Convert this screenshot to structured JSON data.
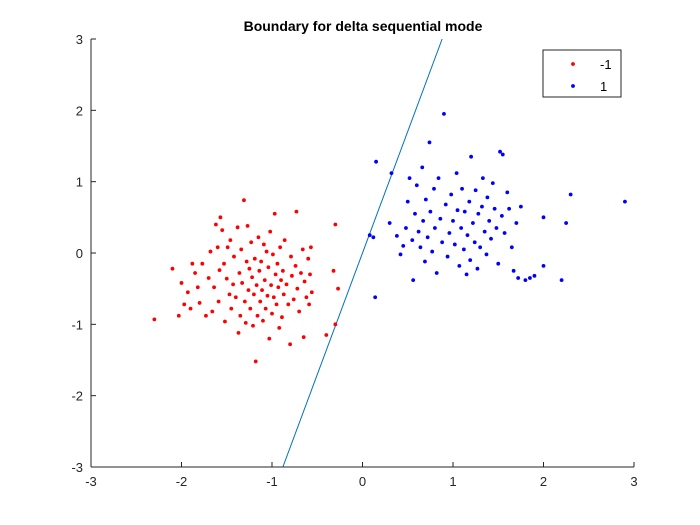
{
  "chart_data": {
    "type": "scatter",
    "title": "Boundary for delta sequential mode",
    "xlabel": "",
    "ylabel": "",
    "xlim": [
      -3,
      3
    ],
    "ylim": [
      -3,
      3
    ],
    "xticks": [
      -3,
      -2,
      -1,
      0,
      1,
      2,
      3
    ],
    "yticks": [
      -3,
      -2,
      -1,
      0,
      1,
      2,
      3
    ],
    "xtick_labels": [
      "-3",
      "-2",
      "-1",
      "0",
      "1",
      "2",
      "3"
    ],
    "ytick_labels": [
      "-3",
      "-2",
      "-1",
      "0",
      "1",
      "2",
      "3"
    ],
    "grid": false,
    "legend_position": "top-right",
    "series": [
      {
        "name": "-1",
        "color": "#ff0000",
        "marker": "dot",
        "points": [
          [
            -2.3,
            -0.93
          ],
          [
            -2.1,
            -0.22
          ],
          [
            -2.03,
            -0.88
          ],
          [
            -2.0,
            -0.42
          ],
          [
            -1.97,
            -0.72
          ],
          [
            -1.93,
            -0.55
          ],
          [
            -1.9,
            -0.78
          ],
          [
            -1.88,
            -0.15
          ],
          [
            -1.85,
            -0.28
          ],
          [
            -1.82,
            -0.48
          ],
          [
            -1.8,
            -0.7
          ],
          [
            -1.77,
            -0.15
          ],
          [
            -1.73,
            -0.88
          ],
          [
            -1.7,
            -0.35
          ],
          [
            -1.68,
            0.02
          ],
          [
            -1.66,
            -0.82
          ],
          [
            -1.64,
            -0.48
          ],
          [
            -1.62,
            0.4
          ],
          [
            -1.6,
            0.08
          ],
          [
            -1.59,
            -0.68
          ],
          [
            -1.58,
            -0.24
          ],
          [
            -1.57,
            0.5
          ],
          [
            -1.55,
            0.32
          ],
          [
            -1.53,
            -0.15
          ],
          [
            -1.52,
            -0.96
          ],
          [
            -1.5,
            -0.36
          ],
          [
            -1.49,
            0.08
          ],
          [
            -1.47,
            -0.58
          ],
          [
            -1.46,
            0.18
          ],
          [
            -1.45,
            -0.78
          ],
          [
            -1.43,
            -0.44
          ],
          [
            -1.42,
            -0.05
          ],
          [
            -1.4,
            -0.62
          ],
          [
            -1.38,
            0.36
          ],
          [
            -1.37,
            -1.12
          ],
          [
            -1.36,
            -0.28
          ],
          [
            -1.35,
            -0.88
          ],
          [
            -1.34,
            0.05
          ],
          [
            -1.33,
            -0.42
          ],
          [
            -1.31,
            0.74
          ],
          [
            -1.3,
            -0.68
          ],
          [
            -1.29,
            -0.98
          ],
          [
            -1.28,
            -0.12
          ],
          [
            -1.27,
            0.38
          ],
          [
            -1.26,
            -0.52
          ],
          [
            -1.25,
            -0.22
          ],
          [
            -1.24,
            -0.78
          ],
          [
            -1.23,
            0.15
          ],
          [
            -1.22,
            -0.34
          ],
          [
            -1.21,
            -1.02
          ],
          [
            -1.2,
            -0.58
          ],
          [
            -1.19,
            -0.08
          ],
          [
            -1.18,
            -1.52
          ],
          [
            -1.17,
            -0.45
          ],
          [
            -1.16,
            -0.88
          ],
          [
            -1.15,
            0.22
          ],
          [
            -1.14,
            -0.25
          ],
          [
            -1.13,
            -0.68
          ],
          [
            -1.12,
            -0.12
          ],
          [
            -1.11,
            -0.52
          ],
          [
            -1.1,
            -0.95
          ],
          [
            -1.09,
            0.12
          ],
          [
            -1.08,
            -0.38
          ],
          [
            -1.07,
            -0.78
          ],
          [
            -1.06,
            0.02
          ],
          [
            -1.05,
            -0.6
          ],
          [
            -1.04,
            -0.2
          ],
          [
            -1.03,
            -1.2
          ],
          [
            -1.02,
            0.3
          ],
          [
            -1.01,
            -0.45
          ],
          [
            -1.0,
            -0.85
          ],
          [
            -0.99,
            -0.02
          ],
          [
            -0.98,
            -0.62
          ],
          [
            -0.97,
            0.55
          ],
          [
            -0.96,
            -0.3
          ],
          [
            -0.95,
            -0.72
          ],
          [
            -0.94,
            -0.15
          ],
          [
            -0.93,
            -0.48
          ],
          [
            -0.92,
            -1.05
          ],
          [
            -0.91,
            0.08
          ],
          [
            -0.9,
            -0.38
          ],
          [
            -0.89,
            -0.9
          ],
          [
            -0.88,
            -0.25
          ],
          [
            -0.87,
            -0.58
          ],
          [
            -0.86,
            0.18
          ],
          [
            -0.84,
            -0.44
          ],
          [
            -0.82,
            -0.72
          ],
          [
            -0.8,
            -1.28
          ],
          [
            -0.79,
            -0.05
          ],
          [
            -0.78,
            -0.32
          ],
          [
            -0.76,
            -0.65
          ],
          [
            -0.74,
            -0.18
          ],
          [
            -0.73,
            0.58
          ],
          [
            -0.72,
            -0.5
          ],
          [
            -0.7,
            -0.82
          ],
          [
            -0.68,
            -0.28
          ],
          [
            -0.66,
            0.05
          ],
          [
            -0.65,
            -1.18
          ],
          [
            -0.64,
            -0.4
          ],
          [
            -0.62,
            -0.62
          ],
          [
            -0.6,
            -0.08
          ],
          [
            -0.59,
            -0.72
          ],
          [
            -0.58,
            -0.3
          ],
          [
            -0.57,
            0.08
          ],
          [
            -0.56,
            -0.55
          ],
          [
            -0.4,
            -1.15
          ],
          [
            -0.32,
            -0.25
          ],
          [
            -0.3,
            0.4
          ],
          [
            -0.3,
            -1.0
          ],
          [
            -0.27,
            -0.5
          ]
        ]
      },
      {
        "name": "1",
        "color": "#0000ff",
        "marker": "dot",
        "points": [
          [
            0.08,
            0.25
          ],
          [
            0.12,
            0.22
          ],
          [
            0.14,
            -0.62
          ],
          [
            0.15,
            1.28
          ],
          [
            0.3,
            0.42
          ],
          [
            0.32,
            1.12
          ],
          [
            0.38,
            0.24
          ],
          [
            0.42,
            -0.02
          ],
          [
            0.45,
            0.1
          ],
          [
            0.48,
            0.35
          ],
          [
            0.5,
            0.72
          ],
          [
            0.52,
            1.05
          ],
          [
            0.55,
            0.18
          ],
          [
            0.56,
            -0.38
          ],
          [
            0.58,
            0.55
          ],
          [
            0.6,
            0.95
          ],
          [
            0.62,
            0.3
          ],
          [
            0.64,
            0.08
          ],
          [
            0.66,
            1.2
          ],
          [
            0.67,
            0.45
          ],
          [
            0.69,
            -0.12
          ],
          [
            0.7,
            0.75
          ],
          [
            0.72,
            0.22
          ],
          [
            0.74,
            1.55
          ],
          [
            0.75,
            0.58
          ],
          [
            0.77,
            0.02
          ],
          [
            0.79,
            0.9
          ],
          [
            0.8,
            0.35
          ],
          [
            0.82,
            -0.28
          ],
          [
            0.84,
            1.05
          ],
          [
            0.86,
            0.48
          ],
          [
            0.88,
            0.15
          ],
          [
            0.9,
            1.95
          ],
          [
            0.92,
            0.68
          ],
          [
            0.94,
            -0.05
          ],
          [
            0.96,
            0.28
          ],
          [
            0.98,
            0.82
          ],
          [
            1.0,
            0.45
          ],
          [
            1.02,
            0.12
          ],
          [
            1.04,
            1.12
          ],
          [
            1.05,
            0.6
          ],
          [
            1.07,
            -0.18
          ],
          [
            1.09,
            0.35
          ],
          [
            1.1,
            0.9
          ],
          [
            1.12,
            0.05
          ],
          [
            1.13,
            0.58
          ],
          [
            1.15,
            -0.3
          ],
          [
            1.16,
            0.25
          ],
          [
            1.18,
            0.72
          ],
          [
            1.19,
            -0.1
          ],
          [
            1.2,
            1.35
          ],
          [
            1.22,
            0.42
          ],
          [
            1.24,
            0.15
          ],
          [
            1.25,
            0.88
          ],
          [
            1.27,
            -0.22
          ],
          [
            1.28,
            0.55
          ],
          [
            1.3,
            0.08
          ],
          [
            1.32,
            0.65
          ],
          [
            1.33,
            1.05
          ],
          [
            1.35,
            0.3
          ],
          [
            1.37,
            -0.02
          ],
          [
            1.38,
            0.78
          ],
          [
            1.4,
            0.45
          ],
          [
            1.42,
            0.2
          ],
          [
            1.44,
            0.98
          ],
          [
            1.46,
            0.62
          ],
          [
            1.48,
            0.35
          ],
          [
            1.5,
            -0.15
          ],
          [
            1.52,
            1.42
          ],
          [
            1.54,
            0.52
          ],
          [
            1.55,
            1.38
          ],
          [
            1.57,
            0.28
          ],
          [
            1.6,
            0.85
          ],
          [
            1.62,
            0.62
          ],
          [
            1.65,
            0.08
          ],
          [
            1.67,
            -0.25
          ],
          [
            1.7,
            0.42
          ],
          [
            1.72,
            -0.35
          ],
          [
            1.75,
            0.65
          ],
          [
            1.8,
            -0.38
          ],
          [
            1.85,
            -0.35
          ],
          [
            1.9,
            -0.32
          ],
          [
            2.0,
            0.5
          ],
          [
            2.0,
            -0.18
          ],
          [
            2.2,
            -0.38
          ],
          [
            2.25,
            0.42
          ],
          [
            2.3,
            0.82
          ],
          [
            2.9,
            0.72
          ]
        ]
      }
    ],
    "boundary_line": {
      "color": "#0072bd",
      "points": [
        [
          -0.88,
          -3
        ],
        [
          0.88,
          3
        ]
      ]
    }
  }
}
